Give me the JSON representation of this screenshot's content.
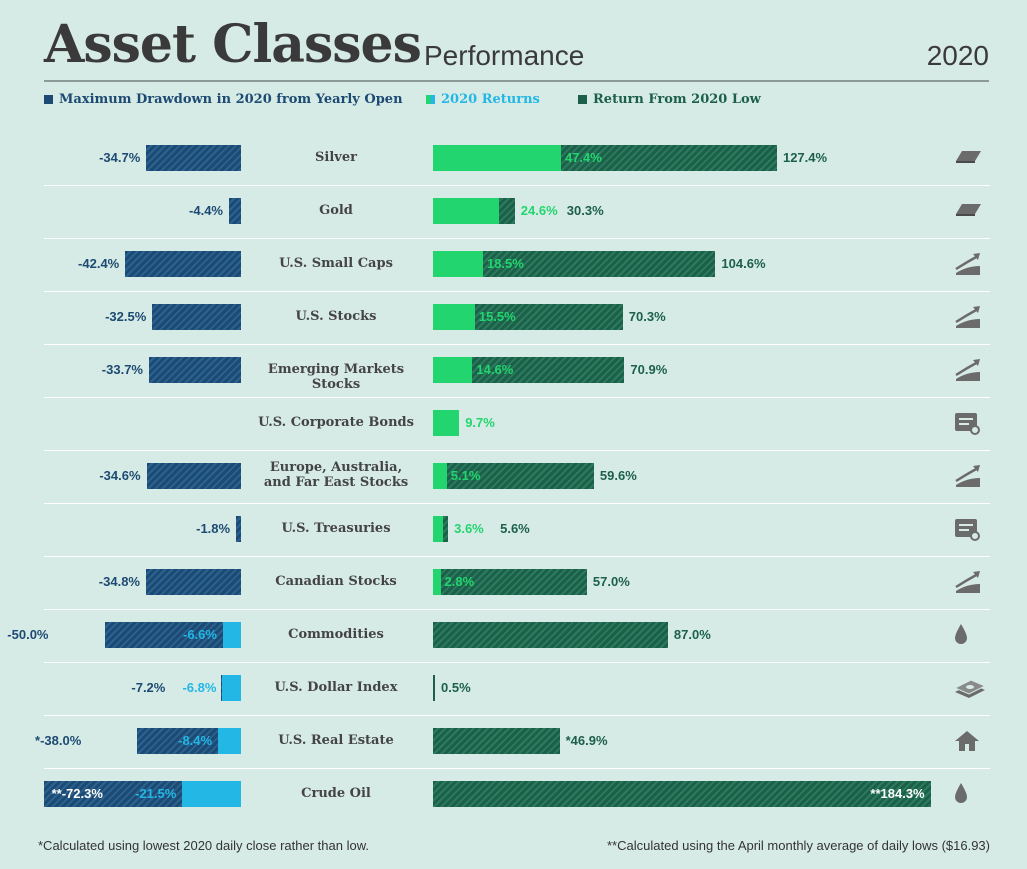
{
  "header": {
    "title": "Asset Classes",
    "subtitle": "Performance",
    "year": "2020"
  },
  "legend": [
    {
      "label": "Maximum Drawdown in 2020 from Yearly Open",
      "color": "#1d4a72"
    },
    {
      "label": "2020 Returns",
      "color": "#23b7e5"
    },
    {
      "label": "Return From 2020 Low",
      "color": "#1c6049"
    }
  ],
  "colors": {
    "navy": "#1d4a72",
    "green_dark": "#1c6049",
    "green_bright": "#22d56e",
    "cyan": "#23b7e5",
    "text_navy": "#1d4a72",
    "text_green": "#1c6049"
  },
  "chart_data": {
    "type": "bar",
    "categories": [
      "Silver",
      "Gold",
      "U.S. Small Caps",
      "U.S. Stocks",
      "Emerging Markets Stocks",
      "U.S. Corporate Bonds",
      "Europe, Australia, and Far East Stocks",
      "U.S. Treasuries",
      "Canadian Stocks",
      "Commodities",
      "U.S. Dollar Index",
      "U.S. Real Estate",
      "Crude Oil"
    ],
    "series": [
      {
        "name": "Maximum Drawdown in 2020 from Yearly Open",
        "values": [
          -34.7,
          -4.4,
          -42.4,
          -32.5,
          -33.7,
          null,
          -34.6,
          -1.8,
          -34.8,
          -50.0,
          -7.2,
          -38.0,
          -72.3
        ],
        "labels": [
          "-34.7%",
          "-4.4%",
          "-42.4%",
          "-32.5%",
          "-33.7%",
          "",
          "-34.6%",
          "-1.8%",
          "-34.8%",
          "-50.0%",
          "-7.2%",
          "*-38.0%",
          "**-72.3%"
        ]
      },
      {
        "name": "2020 Returns",
        "values": [
          47.4,
          24.6,
          18.5,
          15.5,
          14.6,
          9.7,
          5.1,
          3.6,
          2.8,
          -6.6,
          -6.8,
          -8.4,
          -21.5
        ],
        "labels": [
          "47.4%",
          "24.6%",
          "18.5%",
          "15.5%",
          "14.6%",
          "9.7%",
          "5.1%",
          "3.6%",
          "2.8%",
          "-6.6%",
          "-6.8%",
          "-8.4%",
          "-21.5%"
        ]
      },
      {
        "name": "Return From 2020 Low",
        "values": [
          127.4,
          30.3,
          104.6,
          70.3,
          70.9,
          null,
          59.6,
          5.6,
          57.0,
          87.0,
          0.5,
          46.9,
          184.3
        ],
        "labels": [
          "127.4%",
          "30.3%",
          "104.6%",
          "70.3%",
          "70.9%",
          "",
          "59.6%",
          "5.6%",
          "57.0%",
          "87.0%",
          "0.5%",
          "*46.9%",
          "**184.3%"
        ]
      }
    ],
    "icons": [
      "bar-icon",
      "bar-icon",
      "chart-icon",
      "chart-icon",
      "chart-icon",
      "bond-icon",
      "chart-icon",
      "bond-icon",
      "chart-icon",
      "drop-icon",
      "money-icon",
      "house-icon",
      "drop-icon"
    ]
  },
  "footnotes": {
    "left": "*Calculated using lowest 2020 daily close rather than low.",
    "right": "**Calculated using the April monthly average of daily lows ($16.93)"
  }
}
